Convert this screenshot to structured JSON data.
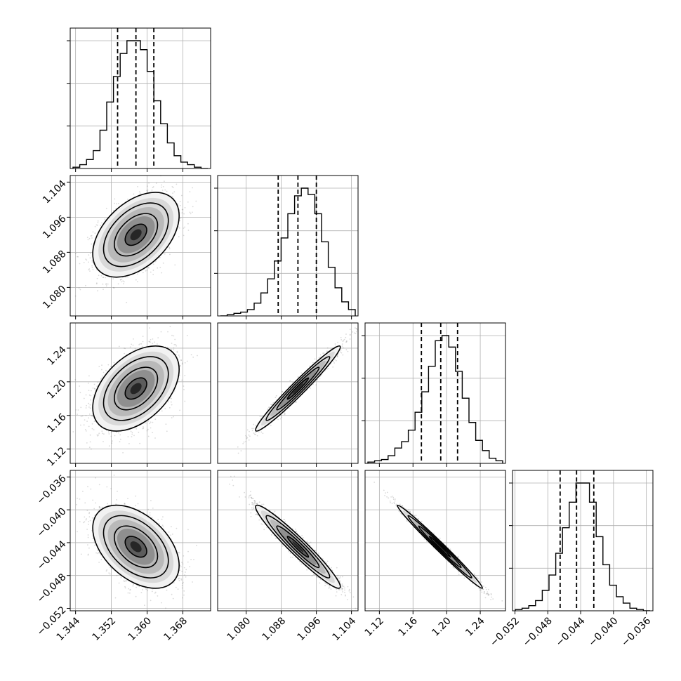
{
  "figure": {
    "style": "corner"
  },
  "chart_data": {
    "type": "corner",
    "parameters": [
      {
        "id": "p0",
        "xticks": [
          "1.344",
          "1.352",
          "1.360",
          "1.368"
        ],
        "xtick_values": [
          1.344,
          1.352,
          1.36,
          1.368
        ],
        "range": [
          1.3428,
          1.3742
        ],
        "quantiles": [
          1.3534,
          1.3575,
          1.3615
        ]
      },
      {
        "id": "p1",
        "xticks": [
          "1.080",
          "1.088",
          "1.096",
          "1.104"
        ],
        "xtick_values": [
          1.08,
          1.088,
          1.096,
          1.104
        ],
        "range": [
          1.0735,
          1.1055
        ],
        "quantiles": [
          1.0873,
          1.0918,
          1.096
        ]
      },
      {
        "id": "p2",
        "xticks": [
          "1.12",
          "1.16",
          "1.20",
          "1.24"
        ],
        "xtick_values": [
          1.12,
          1.16,
          1.2,
          1.24
        ],
        "range": [
          1.103,
          1.27
        ],
        "quantiles": [
          1.17,
          1.193,
          1.213
        ]
      },
      {
        "id": "p3",
        "xticks": [
          "−0.052",
          "−0.048",
          "−0.044",
          "−0.040",
          "−0.036"
        ],
        "xtick_values": [
          -0.052,
          -0.048,
          -0.044,
          -0.04,
          -0.036
        ],
        "range": [
          -0.0523,
          -0.0352
        ],
        "quantiles": [
          -0.0465,
          -0.0445,
          -0.0424
        ]
      }
    ],
    "histograms": [
      {
        "param": "p0",
        "counts": [
          1,
          3,
          7,
          14,
          30,
          52,
          72,
          90,
          100,
          100,
          93,
          76,
          53,
          35,
          20,
          10,
          5,
          3,
          1,
          0
        ]
      },
      {
        "param": "p1",
        "counts": [
          0,
          1,
          2,
          3,
          5,
          10,
          18,
          29,
          43,
          61,
          80,
          94,
          100,
          95,
          80,
          58,
          38,
          22,
          11,
          5
        ]
      },
      {
        "param": "p2",
        "counts": [
          1,
          2,
          3,
          6,
          12,
          17,
          26,
          40,
          56,
          76,
          96,
          100,
          91,
          72,
          51,
          32,
          18,
          10,
          4,
          2
        ]
      },
      {
        "param": "p3",
        "counts": [
          1,
          2,
          4,
          8,
          16,
          28,
          45,
          65,
          85,
          100,
          100,
          85,
          58,
          36,
          20,
          11,
          6,
          2,
          1,
          0
        ]
      }
    ],
    "joint": [
      {
        "x": "p0",
        "y": "p1",
        "mean": [
          1.3575,
          1.092
        ],
        "sd": [
          0.0042,
          0.0042
        ],
        "rho": 0.45
      },
      {
        "x": "p0",
        "y": "p2",
        "mean": [
          1.3575,
          1.192
        ],
        "sd": [
          0.0042,
          0.022
        ],
        "rho": 0.45
      },
      {
        "x": "p1",
        "y": "p2",
        "mean": [
          1.0918,
          1.192
        ],
        "sd": [
          0.0042,
          0.022
        ],
        "rho": 0.975
      },
      {
        "x": "p0",
        "y": "p3",
        "mean": [
          1.3575,
          -0.0445
        ],
        "sd": [
          0.0042,
          0.0022
        ],
        "rho": -0.45
      },
      {
        "x": "p1",
        "y": "p3",
        "mean": [
          1.0918,
          -0.0445
        ],
        "sd": [
          0.0042,
          0.0022
        ],
        "rho": -0.96
      },
      {
        "x": "p2",
        "y": "p3",
        "mean": [
          1.192,
          -0.0445
        ],
        "sd": [
          0.022,
          0.0022
        ],
        "rho": -0.99
      }
    ],
    "contour_levels_sigma": [
      0.5,
      1.0,
      1.5,
      2.0
    ],
    "grid": true,
    "colors": {
      "line": "#000000",
      "grid": "#b0b0b0",
      "scatter": "#7a7a7a"
    }
  }
}
